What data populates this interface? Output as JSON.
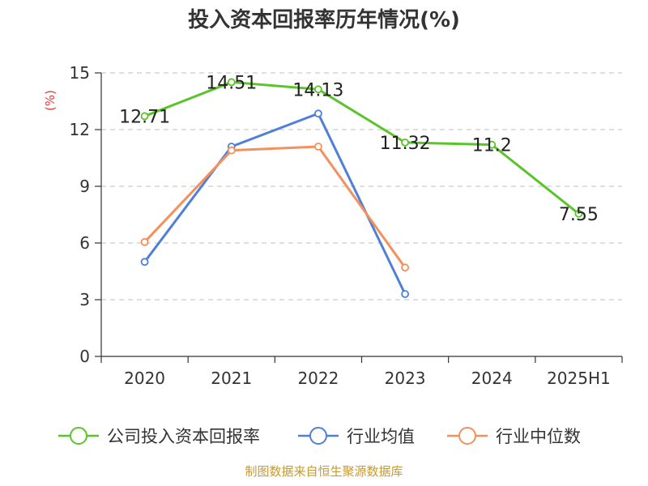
{
  "chart_data": {
    "type": "line",
    "title": "投入资本回报率历年情况(%)",
    "ylabel": "(%)",
    "categories": [
      "2020",
      "2021",
      "2022",
      "2023",
      "2024",
      "2025H1"
    ],
    "ylim": [
      0,
      15
    ],
    "yticks": [
      0,
      3,
      6,
      9,
      12,
      15
    ],
    "grid": true,
    "legend_position": "bottom",
    "series": [
      {
        "name": "公司投入资本回报率",
        "color": "#5bc42a",
        "values": [
          12.71,
          14.51,
          14.13,
          11.32,
          11.2,
          7.55
        ],
        "labels": [
          "12.71",
          "14.51",
          "14.13",
          "11.32",
          "11.2",
          "7.55"
        ]
      },
      {
        "name": "行业均值",
        "color": "#4f7fd8",
        "values": [
          5.0,
          11.1,
          12.85,
          3.3,
          null,
          null
        ]
      },
      {
        "name": "行业中位数",
        "color": "#f5905c",
        "values": [
          6.05,
          10.9,
          11.1,
          4.7,
          null,
          null
        ]
      }
    ]
  },
  "source": "制图数据来自恒生聚源数据库",
  "colors": {
    "axis": "#333333",
    "grid": "#cccccc",
    "unit": "#e8382f",
    "source": "#c79a2e"
  }
}
